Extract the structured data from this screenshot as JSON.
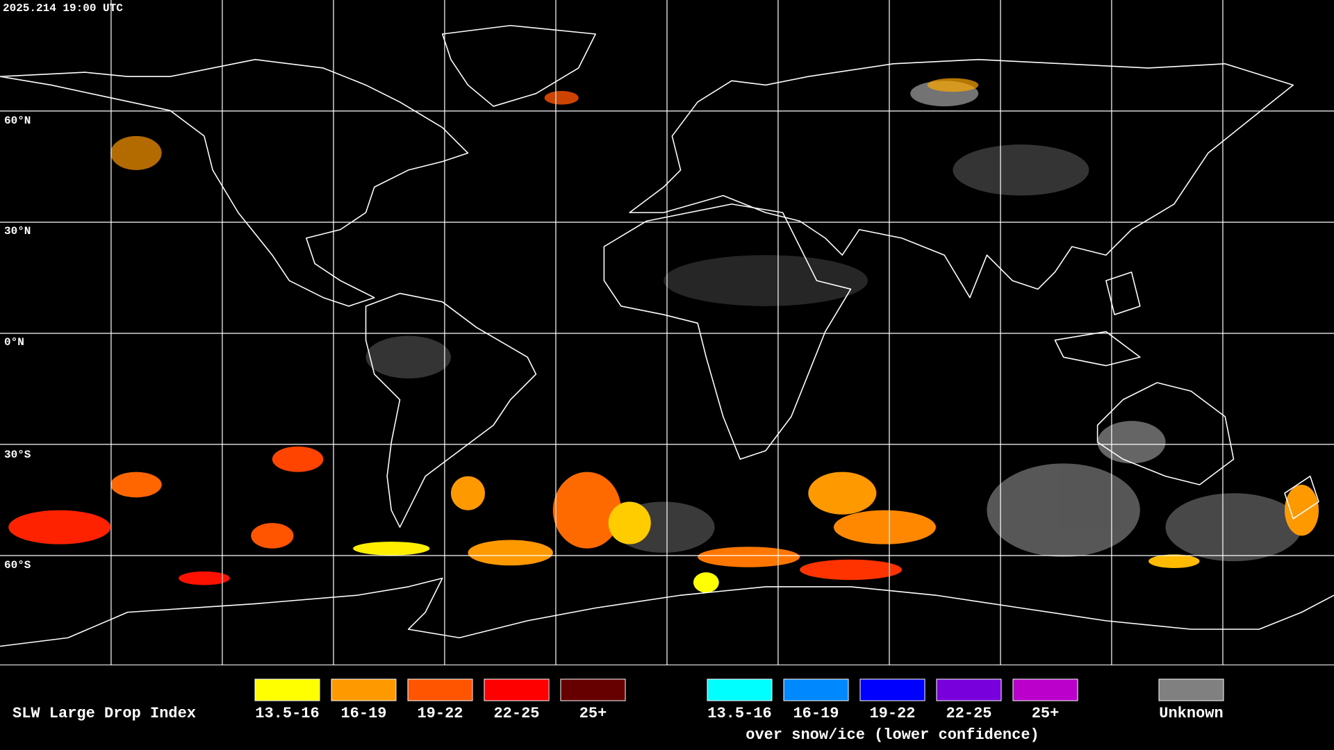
{
  "timestamp": "2025.214 19:00 UTC",
  "latitude_labels": [
    "60°N",
    "30°N",
    "0°N",
    "30°S",
    "60°S"
  ],
  "legend": {
    "title": "SLW Large Drop Index",
    "groups": [
      {
        "items": [
          {
            "label": "13.5-16",
            "color": "#ffff00"
          },
          {
            "label": "16-19",
            "color": "#ff9900"
          },
          {
            "label": "19-22",
            "color": "#ff5500"
          },
          {
            "label": "22-25",
            "color": "#ff0000"
          },
          {
            "label": "25+",
            "color": "#660000"
          }
        ]
      },
      {
        "items": [
          {
            "label": "13.5-16",
            "color": "#00ffff"
          },
          {
            "label": "16-19",
            "color": "#0088ff"
          },
          {
            "label": "19-22",
            "color": "#0000ff"
          },
          {
            "label": "22-25",
            "color": "#7700dd"
          },
          {
            "label": "25+",
            "color": "#bb00cc"
          }
        ],
        "caption": "over snow/ice (lower confidence)"
      },
      {
        "items": [
          {
            "label": "Unknown",
            "color": "#808080"
          }
        ]
      }
    ]
  }
}
